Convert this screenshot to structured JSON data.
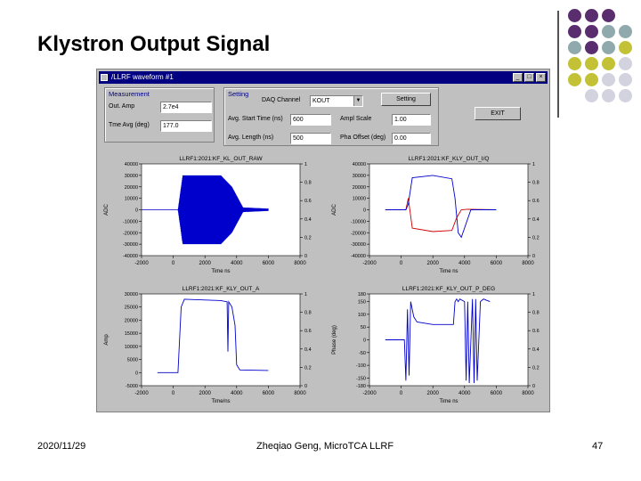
{
  "slide": {
    "title": "Klystron Output Signal",
    "date": "2020/11/29",
    "author": "Zheqiao Geng, MicroTCA LLRF",
    "page": "47"
  },
  "window": {
    "title": "/LLRF waveform #1",
    "measurement": {
      "heading": "Measurement",
      "amp_label": "Out. Amp",
      "amp_value": "2.7e4",
      "phase_label": "Tme Avg (deg)",
      "phase_value": "177.0"
    },
    "setting": {
      "heading": "Setting",
      "daq_label": "DAQ Channel",
      "daq_value": "KOUT",
      "start_label": "Avg. Start Time (ns)",
      "start_value": "600",
      "length_label": "Avg. Length (ns)",
      "length_value": "500",
      "scale_label": "Ampl Scale",
      "scale_value": "1.00",
      "offset_label": "Pha Offset (deg)",
      "offset_value": "0.00",
      "setting_button": "Setting",
      "exit_button": "EXIT"
    }
  },
  "colors": {
    "blue": "#0000cc",
    "red": "#cc0000",
    "window_title": "#000080",
    "dot_purple": "#5a2d6e",
    "dot_gray": "#8fa9ac",
    "dot_olive": "#c3c135",
    "dot_light": "#d3d3e0"
  },
  "chart_data": [
    {
      "type": "line",
      "title": "LLRF1:2021:KF_KL_OUT_RAW",
      "xlabel": "Time ns",
      "ylabel": "ADC",
      "xlim": [
        -2000,
        8000
      ],
      "ylim": [
        -40000,
        40000
      ],
      "x_ticks": [
        "-2000",
        "0",
        "2000",
        "4000",
        "6000",
        "8000"
      ],
      "y_ticks": [
        "40000",
        "30000",
        "20000",
        "10000",
        "0",
        "-10000",
        "-20000",
        "-30000",
        "-40000"
      ],
      "y2_ticks": [
        "1",
        "0.8",
        "0.6",
        "0.4",
        "0.2",
        "0"
      ],
      "series": [
        {
          "color": "#0000cc",
          "x": [
            -1000,
            300,
            600,
            3000,
            3700,
            4400,
            6000
          ],
          "y": [
            0,
            0,
            30000,
            30000,
            20000,
            2000,
            1000
          ]
        }
      ]
    },
    {
      "type": "line",
      "title": "LLRF1:2021:KF_KLY_OUT_I/Q",
      "xlabel": "Time ns",
      "ylabel": "ADC",
      "xlim": [
        -2000,
        8000
      ],
      "ylim": [
        -40000,
        40000
      ],
      "x_ticks": [
        "-2000",
        "0",
        "2000",
        "4000",
        "6000",
        "8000"
      ],
      "y_ticks": [
        "40000",
        "30000",
        "20000",
        "10000",
        "0",
        "-10000",
        "-20000",
        "-30000",
        "-40000"
      ],
      "y2_ticks": [
        "1",
        "0.8",
        "0.6",
        "0.4",
        "0.2",
        "0"
      ],
      "series": [
        {
          "color": "#cc0000",
          "x": [
            -1000,
            300,
            450,
            700,
            2000,
            3200,
            3500,
            3800,
            4200,
            6000
          ],
          "y": [
            0,
            0,
            10000,
            -16000,
            -19000,
            -18000,
            -7000,
            0,
            500,
            0
          ]
        },
        {
          "color": "#0000cc",
          "x": [
            -1000,
            300,
            450,
            700,
            2000,
            3200,
            3400,
            3600,
            3800,
            4400,
            6000
          ],
          "y": [
            0,
            0,
            5000,
            28000,
            30000,
            27000,
            10000,
            -20000,
            -24000,
            0,
            0
          ]
        }
      ]
    },
    {
      "type": "line",
      "title": "LLRF1:2021:KF_KLY_OUT_A",
      "xlabel": "Time/ns",
      "ylabel": "Amp",
      "xlim": [
        -2000,
        8000
      ],
      "ylim": [
        -5000,
        30000
      ],
      "x_ticks": [
        "-2000",
        "0",
        "2000",
        "4000",
        "6000",
        "8000"
      ],
      "y_ticks": [
        "30000",
        "25000",
        "20000",
        "15000",
        "10000",
        "5000",
        "0",
        "-5000"
      ],
      "y2_ticks": [
        "1",
        "0.8",
        "0.6",
        "0.4",
        "0.2",
        "0"
      ],
      "series": [
        {
          "color": "#0000cc",
          "x": [
            -1000,
            300,
            500,
            700,
            3000,
            3400,
            3450,
            3500,
            3700,
            3900,
            4000,
            4200,
            6000
          ],
          "y": [
            0,
            0,
            25000,
            28000,
            27500,
            27000,
            8000,
            27000,
            25000,
            18000,
            3000,
            1000,
            800
          ]
        }
      ]
    },
    {
      "type": "line",
      "title": "LLRF1:2021:KF_KLY_OUT_P_DEG",
      "xlabel": "Time ns",
      "ylabel": "Phase (deg)",
      "xlim": [
        -2000,
        8000
      ],
      "ylim": [
        -180,
        180
      ],
      "x_ticks": [
        "-2000",
        "0",
        "2000",
        "4000",
        "6000",
        "8000"
      ],
      "y_ticks": [
        "180",
        "150",
        "100",
        "50",
        "0",
        "-50",
        "-100",
        "-150",
        "-180"
      ],
      "y2_ticks": [
        "1",
        "0.8",
        "0.6",
        "0.4",
        "0.2",
        "0"
      ],
      "series": [
        {
          "color": "#0000cc",
          "x": [
            -1000,
            200,
            300,
            400,
            500,
            600,
            800,
            1000,
            2000,
            3300,
            3400,
            3500,
            3600,
            3700,
            4000,
            4100,
            4200,
            4300,
            4500,
            4600,
            4700,
            4800,
            5000,
            5200,
            5400,
            5600
          ],
          "y": [
            0,
            0,
            -160,
            120,
            -140,
            150,
            90,
            70,
            60,
            60,
            150,
            160,
            150,
            160,
            150,
            -160,
            150,
            -170,
            160,
            -170,
            160,
            -160,
            150,
            160,
            155,
            150
          ]
        }
      ]
    }
  ]
}
